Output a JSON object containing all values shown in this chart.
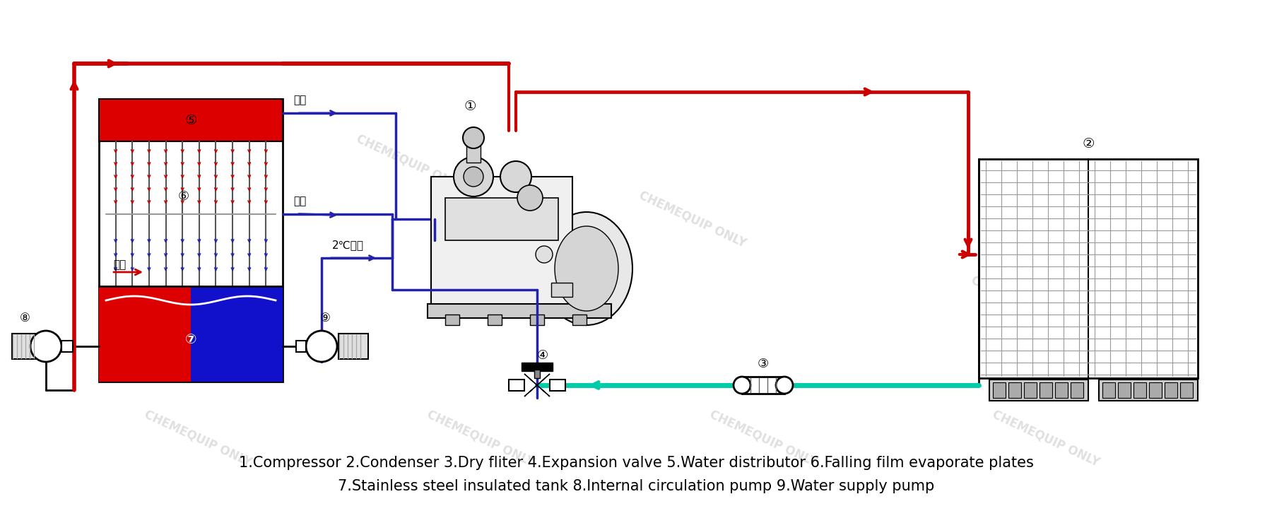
{
  "background_color": "#ffffff",
  "text_line1": "1.Compressor 2.Condenser 3.Dry fliter 4.Expansion valve 5.Water distributor 6.Falling film evaporate plates",
  "text_line2": "7.Stainless steel insulated tank 8.Internal circulation pump 9.Water supply pump",
  "watermark": "CHEMEQUIP ONLY",
  "red_color": "#cc0000",
  "dark_blue": "#2222aa",
  "cyan_color": "#00ccaa",
  "red_fill": "#dd0000",
  "blue_fill": "#1111cc",
  "text_font_size": 15,
  "watermark_color": "#bbbbbb",
  "watermark_alpha": 0.45,
  "label_nums": [
    "①",
    "②",
    "③",
    "④",
    "⑤",
    "⑥",
    "⑦",
    "⑧",
    "⑨"
  ],
  "chinese_labels": {
    "huiqi": "回气",
    "yeye": "液液",
    "jinshui": "进水",
    "cold": "2℃冷水"
  }
}
